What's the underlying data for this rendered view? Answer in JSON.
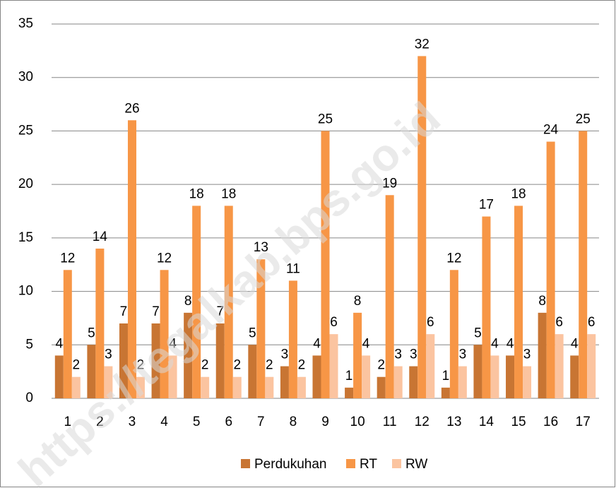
{
  "chart_data": {
    "type": "bar",
    "categories": [
      "1",
      "2",
      "3",
      "4",
      "5",
      "6",
      "7",
      "8",
      "9",
      "10",
      "11",
      "12",
      "13",
      "14",
      "15",
      "16",
      "17"
    ],
    "series": [
      {
        "name": "Perdukuhan",
        "color": "#c87533",
        "values": [
          4,
          5,
          7,
          7,
          8,
          7,
          5,
          3,
          4,
          1,
          2,
          3,
          1,
          5,
          4,
          8,
          4
        ]
      },
      {
        "name": "RT",
        "color": "#f79646",
        "values": [
          12,
          14,
          26,
          12,
          18,
          18,
          13,
          11,
          25,
          8,
          19,
          32,
          12,
          17,
          18,
          24,
          25
        ]
      },
      {
        "name": "RW",
        "color": "#fbc4a0",
        "values": [
          2,
          3,
          2,
          4,
          2,
          2,
          2,
          2,
          6,
          4,
          3,
          6,
          3,
          4,
          3,
          6,
          6
        ]
      }
    ],
    "ylim": [
      0,
      35
    ],
    "yticks": [
      0,
      5,
      10,
      15,
      20,
      25,
      30,
      35
    ],
    "grid": true,
    "legend": "bottom",
    "watermark": "https://tegalkab.bps.go.id"
  }
}
